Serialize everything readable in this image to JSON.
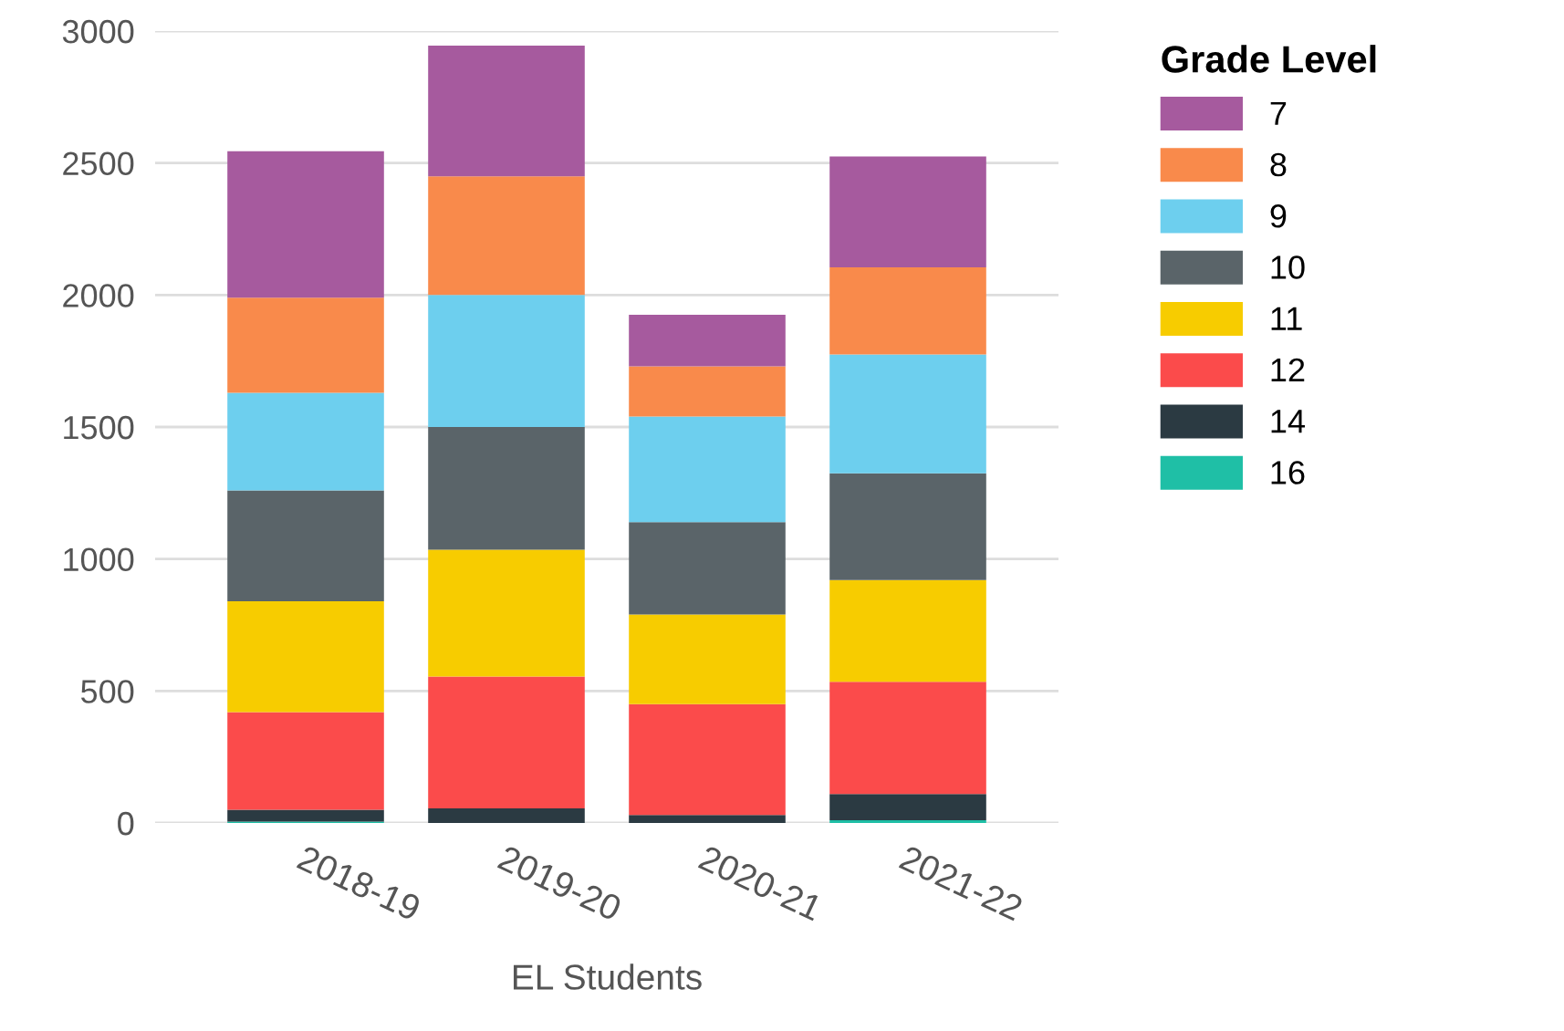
{
  "chart_data": {
    "type": "bar",
    "stacked": true,
    "xlabel": "EL Students",
    "legend_title": "Grade Level",
    "categories": [
      "2018-19",
      "2019-20",
      "2020-21",
      "2021-22"
    ],
    "series": [
      {
        "name": "16",
        "color": "#1fbfa6",
        "values": [
          5,
          0,
          0,
          10
        ]
      },
      {
        "name": "14",
        "color": "#2b3a42",
        "values": [
          45,
          55,
          30,
          100
        ]
      },
      {
        "name": "12",
        "color": "#fb4b4b",
        "values": [
          370,
          500,
          420,
          425
        ]
      },
      {
        "name": "11",
        "color": "#f7cc00",
        "values": [
          420,
          480,
          340,
          385
        ]
      },
      {
        "name": "10",
        "color": "#5a6469",
        "values": [
          420,
          465,
          350,
          405
        ]
      },
      {
        "name": "9",
        "color": "#6dcfee",
        "values": [
          370,
          500,
          400,
          450
        ]
      },
      {
        "name": "8",
        "color": "#f98a4b",
        "values": [
          360,
          450,
          190,
          330
        ]
      },
      {
        "name": "7",
        "color": "#a65a9e",
        "values": [
          555,
          495,
          195,
          420
        ]
      }
    ],
    "ylim": [
      0,
      3000
    ],
    "yticks": [
      0,
      500,
      1000,
      1500,
      2000,
      2500,
      3000
    ],
    "grid": "y",
    "legend": "right"
  }
}
